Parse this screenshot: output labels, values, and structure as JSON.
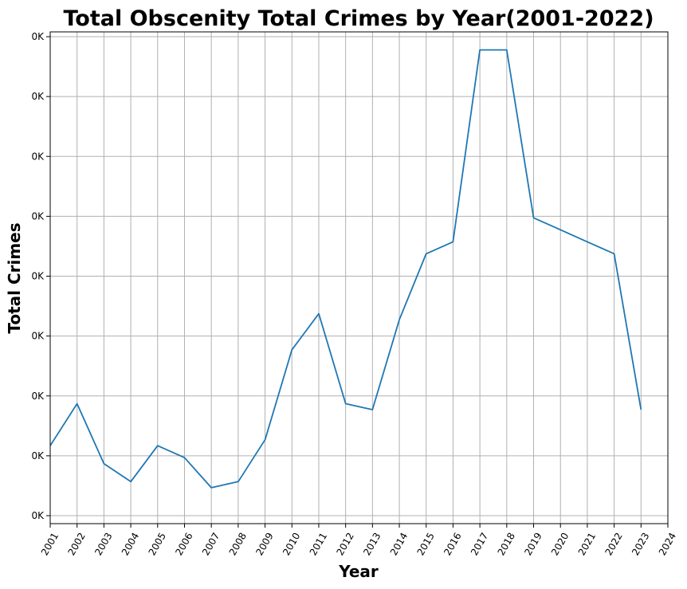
{
  "chart_data": {
    "type": "line",
    "title": "Total Obscenity Total Crimes by Year(2001-2022)",
    "xlabel": "Year",
    "ylabel": "Total Crimes",
    "x_ticks": [
      "2001",
      "2002",
      "2003",
      "2004",
      "2005",
      "2006",
      "2007",
      "2008",
      "2009",
      "2010",
      "2011",
      "2012",
      "2013",
      "2014",
      "2015",
      "2016",
      "2017",
      "2018",
      "2019",
      "2020",
      "2021",
      "2022",
      "2023",
      "2024"
    ],
    "y_ticks": [
      "0K",
      "0K",
      "0K",
      "0K",
      "0K",
      "0K",
      "0K",
      "0K",
      "0K"
    ],
    "xlim": [
      2001,
      2024
    ],
    "ylim": [
      5,
      87
    ],
    "grid": true,
    "series": [
      {
        "color": "#1f77b4",
        "x": [
          2001,
          2002,
          2003,
          2004,
          2005,
          2006,
          2007,
          2008,
          2009,
          2010,
          2011,
          2012,
          2013,
          2014,
          2015,
          2016,
          2017,
          2018,
          2019,
          2020,
          2021,
          2022,
          2023
        ],
        "y": [
          18,
          25,
          15,
          12,
          18,
          16,
          11,
          12,
          19,
          34,
          40,
          25,
          24,
          39,
          50,
          52,
          84,
          84,
          56,
          54,
          52,
          50,
          24
        ]
      }
    ]
  }
}
